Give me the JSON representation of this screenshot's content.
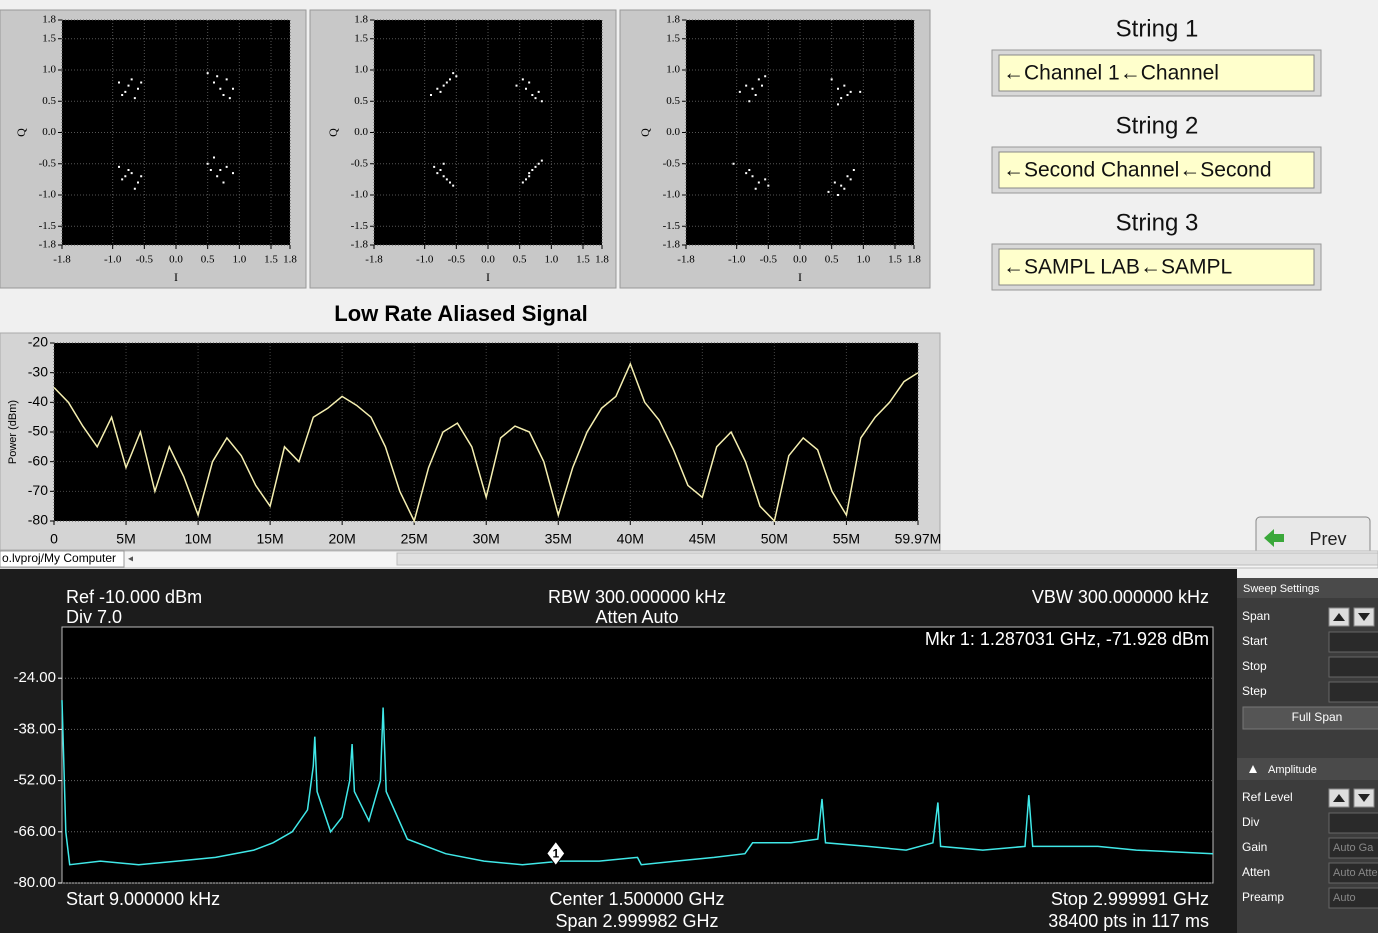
{
  "chart_data": [
    {
      "type": "scatter",
      "xlabel": "I",
      "ylabel": "Q",
      "color": "#ffffff",
      "grid": true,
      "xlim": [
        -1.8,
        1.8
      ],
      "ylim": [
        -1.8,
        1.8
      ],
      "xticks": [
        -1.8,
        {
          "value": -1,
          "label": "-1.0"
        },
        -0.5,
        {
          "value": 0,
          "label": "0.0"
        },
        0.5,
        {
          "value": 1,
          "label": "1.0"
        },
        1.5,
        1.8
      ],
      "yticks": [
        1.8,
        1.5,
        {
          "value": 1,
          "label": "1.0"
        },
        0.5,
        {
          "value": 0,
          "label": "0.0"
        },
        -0.5,
        {
          "value": -1,
          "label": "-1.0"
        },
        -1.5,
        -1.8
      ],
      "x": [
        -0.9,
        -0.8,
        -0.7,
        -0.6,
        -0.65,
        -0.75,
        -0.55,
        -0.85,
        0.5,
        0.6,
        0.7,
        0.8,
        0.75,
        0.65,
        0.9,
        0.85,
        -0.9,
        -0.8,
        -0.7,
        -0.6,
        -0.65,
        -0.75,
        -0.55,
        -0.85,
        0.5,
        0.6,
        0.7,
        0.8,
        0.75,
        0.65,
        0.9,
        0.55
      ],
      "values": [
        0.8,
        0.65,
        0.85,
        0.7,
        0.55,
        0.75,
        0.8,
        0.6,
        0.95,
        0.8,
        0.7,
        0.85,
        0.6,
        0.9,
        0.7,
        0.55,
        -0.55,
        -0.7,
        -0.65,
        -0.8,
        -0.9,
        -0.6,
        -0.7,
        -0.75,
        -0.5,
        -0.4,
        -0.6,
        -0.55,
        -0.8,
        -0.7,
        -0.65,
        -0.6
      ]
    },
    {
      "type": "scatter",
      "xlabel": "I",
      "ylabel": "Q",
      "color": "#ffffff",
      "grid": true,
      "xlim": [
        -1.8,
        1.8
      ],
      "ylim": [
        -1.8,
        1.8
      ],
      "xticks": [
        -1.8,
        {
          "value": -1,
          "label": "-1.0"
        },
        -0.5,
        {
          "value": 0,
          "label": "0.0"
        },
        0.5,
        {
          "value": 1,
          "label": "1.0"
        },
        1.5,
        1.8
      ],
      "yticks": [
        1.8,
        1.5,
        {
          "value": 1,
          "label": "1.0"
        },
        0.5,
        {
          "value": 0,
          "label": "0.0"
        },
        -0.5,
        {
          "value": -1,
          "label": "-1.0"
        },
        -1.5,
        -1.8
      ],
      "x": [
        -0.9,
        -0.8,
        -0.7,
        -0.6,
        -0.5,
        -0.75,
        -0.65,
        -0.55,
        0.45,
        0.55,
        0.65,
        0.7,
        0.75,
        0.8,
        0.6,
        0.85,
        -0.85,
        -0.75,
        -0.7,
        -0.65,
        -0.6,
        -0.8,
        -0.55,
        -0.7,
        0.55,
        0.6,
        0.65,
        0.7,
        0.75,
        0.8,
        0.85,
        0.65
      ],
      "values": [
        0.6,
        0.7,
        0.75,
        0.85,
        0.9,
        0.65,
        0.8,
        0.95,
        0.75,
        0.85,
        0.8,
        0.6,
        0.55,
        0.65,
        0.7,
        0.5,
        -0.55,
        -0.6,
        -0.7,
        -0.75,
        -0.8,
        -0.65,
        -0.85,
        -0.5,
        -0.8,
        -0.75,
        -0.65,
        -0.6,
        -0.55,
        -0.5,
        -0.45,
        -0.7
      ]
    },
    {
      "type": "scatter",
      "xlabel": "I",
      "ylabel": "Q",
      "color": "#ffffff",
      "grid": true,
      "xlim": [
        -1.8,
        1.8
      ],
      "ylim": [
        -1.8,
        1.8
      ],
      "xticks": [
        -1.8,
        {
          "value": -1,
          "label": "-1.0"
        },
        -0.5,
        {
          "value": 0,
          "label": "0.0"
        },
        0.5,
        {
          "value": 1,
          "label": "1.0"
        },
        1.5,
        1.8
      ],
      "yticks": [
        1.8,
        1.5,
        {
          "value": 1,
          "label": "1.0"
        },
        0.5,
        {
          "value": 0,
          "label": "0.0"
        },
        -0.5,
        {
          "value": -1,
          "label": "-1.0"
        },
        -1.5,
        -1.8
      ],
      "x": [
        -0.95,
        -0.85,
        -0.75,
        -0.65,
        -0.55,
        -0.8,
        -0.7,
        -0.6,
        0.5,
        0.6,
        0.65,
        0.7,
        0.75,
        0.8,
        0.6,
        0.95,
        -1.05,
        -0.85,
        -0.75,
        -0.65,
        -0.55,
        -0.7,
        -0.8,
        -0.5,
        0.45,
        0.55,
        0.65,
        0.75,
        0.85,
        0.7,
        0.6,
        0.8
      ],
      "values": [
        0.65,
        0.75,
        0.7,
        0.85,
        0.9,
        0.5,
        0.6,
        0.75,
        0.85,
        0.7,
        0.55,
        0.75,
        0.6,
        0.65,
        0.45,
        0.65,
        -0.5,
        -0.65,
        -0.7,
        -0.8,
        -0.75,
        -0.9,
        -0.6,
        -0.85,
        -0.95,
        -0.8,
        -0.85,
        -0.7,
        -0.6,
        -0.9,
        -1.0,
        -0.75
      ]
    },
    {
      "type": "line",
      "title": "Low Rate Aliased Signal",
      "ylabel": "Power (dBm)",
      "color": "#f5efb0",
      "grid": true,
      "xlim": [
        0,
        59970000
      ],
      "ylim": [
        -80,
        -20
      ],
      "yticks": [
        -20,
        -30,
        -40,
        -50,
        -60,
        -70,
        -80
      ],
      "xticks": [
        0,
        {
          "value": 5000000,
          "label": "5M"
        },
        {
          "value": 10000000,
          "label": "10M"
        },
        {
          "value": 15000000,
          "label": "15M"
        },
        {
          "value": 20000000,
          "label": "20M"
        },
        {
          "value": 25000000,
          "label": "25M"
        },
        {
          "value": 30000000,
          "label": "30M"
        },
        {
          "value": 35000000,
          "label": "35M"
        },
        {
          "value": 40000000,
          "label": "40M"
        },
        {
          "value": 45000000,
          "label": "45M"
        },
        {
          "value": 50000000,
          "label": "50M"
        },
        {
          "value": 55000000,
          "label": "55M"
        },
        {
          "value": 59970000,
          "label": "59.97M"
        }
      ],
      "x": [
        0,
        1000000,
        2000000,
        3000000,
        4000000,
        5000000,
        6000000,
        7000000,
        8000000,
        9000000,
        10000000,
        11000000,
        12000000,
        13000000,
        14000000,
        15000000,
        16000000,
        17000000,
        18000000,
        19000000,
        20000000,
        21000000,
        22000000,
        23000000,
        24000000,
        25000000,
        26000000,
        27000000,
        28000000,
        29000000,
        30000000,
        31000000,
        32000000,
        33000000,
        34000000,
        35000000,
        36000000,
        37000000,
        38000000,
        39000000,
        40000000,
        41000000,
        42000000,
        43000000,
        44000000,
        45000000,
        46000000,
        47000000,
        48000000,
        49000000,
        50000000,
        51000000,
        52000000,
        53000000,
        54000000,
        55000000,
        56000000,
        57000000,
        58000000,
        59000000,
        59970000
      ],
      "values": [
        -35,
        -40,
        -48,
        -55,
        -45,
        -62,
        -50,
        -70,
        -55,
        -65,
        -78,
        -60,
        -52,
        -58,
        -68,
        -75,
        -55,
        -60,
        -45,
        -42,
        -38,
        -41,
        -45,
        -55,
        -70,
        -80,
        -62,
        -50,
        -47,
        -55,
        -72,
        -52,
        -48,
        -50,
        -60,
        -78,
        -62,
        -50,
        -42,
        -38,
        -27,
        -40,
        -46,
        -56,
        -68,
        -72,
        -55,
        -50,
        -60,
        -75,
        -80,
        -58,
        -52,
        -56,
        -70,
        -78,
        -52,
        -45,
        -40,
        -33,
        -30
      ]
    },
    {
      "type": "line",
      "color": "#40e8e8",
      "grid": true,
      "xlim": [
        9e-06,
        2.999991
      ],
      "ylim": [
        -80,
        -10
      ],
      "yticks": [
        {
          "value": -24,
          "label": "-24.00"
        },
        {
          "value": -38,
          "label": "-38.00"
        },
        {
          "value": -52,
          "label": "-52.00"
        },
        {
          "value": -66,
          "label": "-66.00"
        },
        {
          "value": -80,
          "label": "-80.00"
        }
      ],
      "x": [
        9e-06,
        0.01,
        0.02,
        0.1,
        0.2,
        0.3,
        0.4,
        0.5,
        0.55,
        0.6,
        0.64,
        0.655,
        0.659,
        0.665,
        0.7,
        0.73,
        0.75,
        0.756,
        0.762,
        0.8,
        0.83,
        0.837,
        0.845,
        0.9,
        1.0,
        1.1,
        1.2,
        1.3,
        1.4,
        1.5,
        1.51,
        1.6,
        1.7,
        1.78,
        1.8,
        1.9,
        1.97,
        1.981,
        1.99,
        2.1,
        2.2,
        2.27,
        2.283,
        2.29,
        2.4,
        2.51,
        2.52,
        2.53,
        2.7,
        2.8,
        2.999991
      ],
      "values": [
        -30,
        -66,
        -75,
        -74,
        -75,
        -74,
        -73,
        -71,
        -69,
        -66,
        -60,
        -48,
        -40,
        -55,
        -66,
        -62,
        -52,
        -42,
        -55,
        -63,
        -52,
        -32,
        -55,
        -68,
        -72,
        -74,
        -75,
        -74,
        -74,
        -73,
        -75,
        -74,
        -73,
        -72,
        -69,
        -69,
        -68,
        -57,
        -69,
        -70,
        -71,
        -69,
        -58,
        -70,
        -71,
        -70,
        -56,
        -70,
        -70,
        -71,
        -72
      ],
      "marker": {
        "label": "1",
        "x": 1.287031,
        "value": -71.928
      }
    }
  ],
  "ui": {
    "strings": [
      {
        "label": "String 1",
        "value": "←Channel 1←Channel"
      },
      {
        "label": "String 2",
        "value": "←Second Channel←Second"
      },
      {
        "label": "String 3",
        "value": "←SAMPL LAB←SAMPL"
      }
    ],
    "prev": "Prev",
    "path": "o.lvproj/My Computer",
    "analyzer": {
      "ref": "Ref -10.000 dBm",
      "div": "Div 7.0",
      "rbw": "RBW 300.000000 kHz",
      "atten": "Atten Auto",
      "vbw": "VBW 300.000000 kHz",
      "marker": "Mkr 1: 1.287031 GHz, -71.928 dBm",
      "start": "Start 9.000000 kHz",
      "center": "Center 1.500000 GHz",
      "span": "Span 2.999982 GHz",
      "stop": "Stop 2.999991 GHz",
      "points": "38400 pts in 117 ms"
    },
    "sweep": {
      "title": "Sweep Settings",
      "fields": [
        "Span",
        "Start",
        "Stop",
        "Step"
      ],
      "button": "Full Span",
      "amplitude": "Amplitude",
      "amp_fields": [
        {
          "label": "Ref Level"
        },
        {
          "label": "Div"
        },
        {
          "label": "Gain",
          "value": "Auto Ga"
        },
        {
          "label": "Atten",
          "value": "Auto Atte"
        },
        {
          "label": "Preamp",
          "value": "Auto"
        }
      ]
    }
  }
}
